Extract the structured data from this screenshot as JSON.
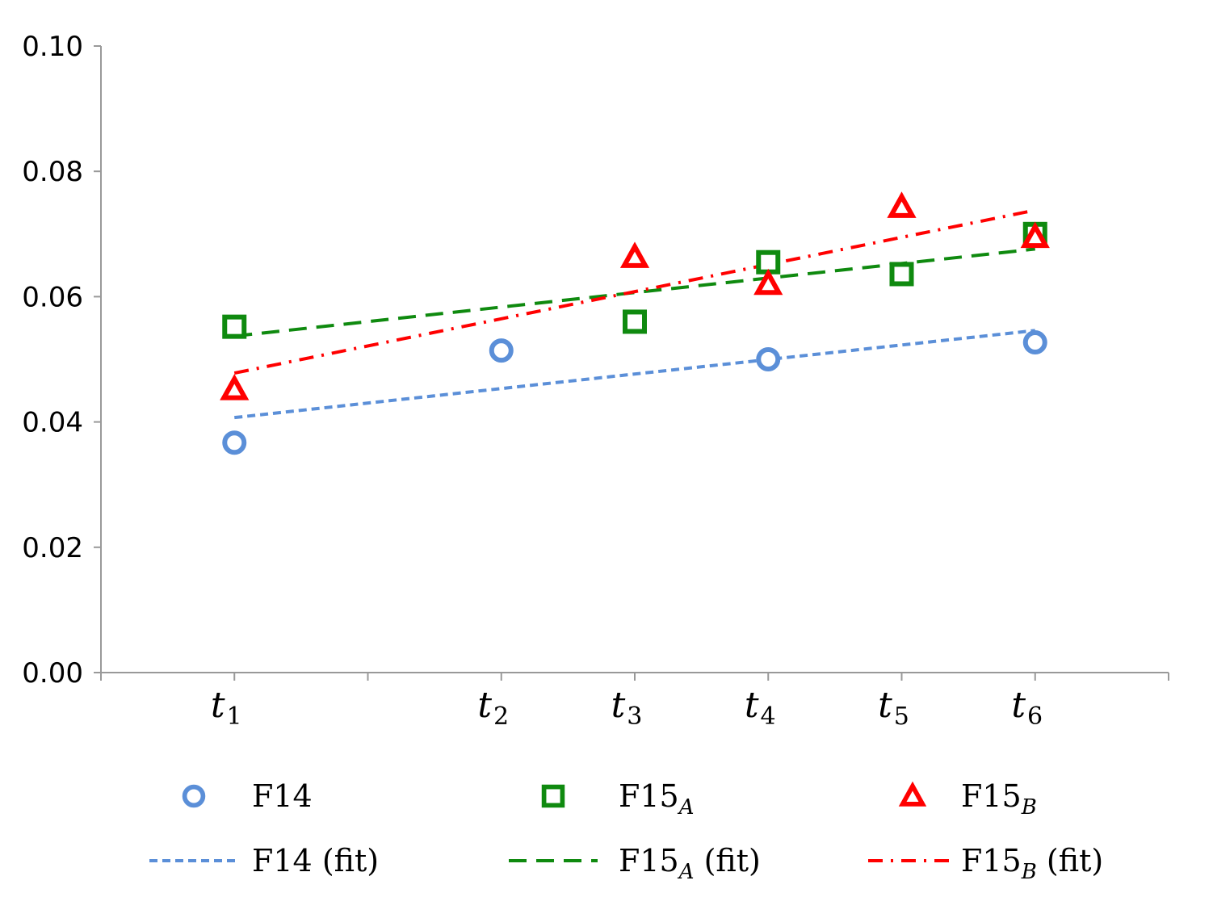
{
  "chart_data": {
    "type": "scatter",
    "title": "",
    "xlabel": "",
    "ylabel": "",
    "ylim": [
      0,
      0.1
    ],
    "yticks": [
      "0.00",
      "0.02",
      "0.04",
      "0.06",
      "0.08",
      "0.10"
    ],
    "x_positions": [
      1,
      3,
      4,
      5,
      6,
      7
    ],
    "x_range": [
      0,
      8
    ],
    "xticks": [
      {
        "base": "t",
        "sub": "1"
      },
      {
        "base": "t",
        "sub": "2"
      },
      {
        "base": "t",
        "sub": "3"
      },
      {
        "base": "t",
        "sub": "4"
      },
      {
        "base": "t",
        "sub": "5"
      },
      {
        "base": "t",
        "sub": "6"
      }
    ],
    "grid": false,
    "legend_position": "bottom",
    "series": [
      {
        "name": "F14",
        "name_sub": "",
        "marker": "circle",
        "color": "#5b8fd8",
        "values": [
          0.0367,
          0.0514,
          null,
          0.05,
          null,
          0.0527
        ]
      },
      {
        "name": "F15",
        "name_sub": "A",
        "marker": "square",
        "color": "#0f8a0f",
        "values": [
          0.0552,
          null,
          0.056,
          0.0655,
          0.0636,
          0.07
        ]
      },
      {
        "name": "F15",
        "name_sub": "B",
        "marker": "triangle",
        "color": "#ff0000",
        "values": [
          0.0452,
          null,
          0.0663,
          0.062,
          0.0743,
          0.0695
        ]
      }
    ],
    "fits": [
      {
        "name": "F14",
        "name_sub": "",
        "suffix": " (fit)",
        "color": "#5b8fd8",
        "dash": "short",
        "y_start": 0.0407,
        "y_end": 0.0546
      },
      {
        "name": "F15",
        "name_sub": "A",
        "suffix": " (fit)",
        "color": "#0f8a0f",
        "dash": "long",
        "y_start": 0.0537,
        "y_end": 0.0676
      },
      {
        "name": "F15",
        "name_sub": "B",
        "suffix": " (fit)",
        "color": "#ff0000",
        "dash": "dashdot",
        "y_start": 0.0478,
        "y_end": 0.0738
      }
    ]
  }
}
